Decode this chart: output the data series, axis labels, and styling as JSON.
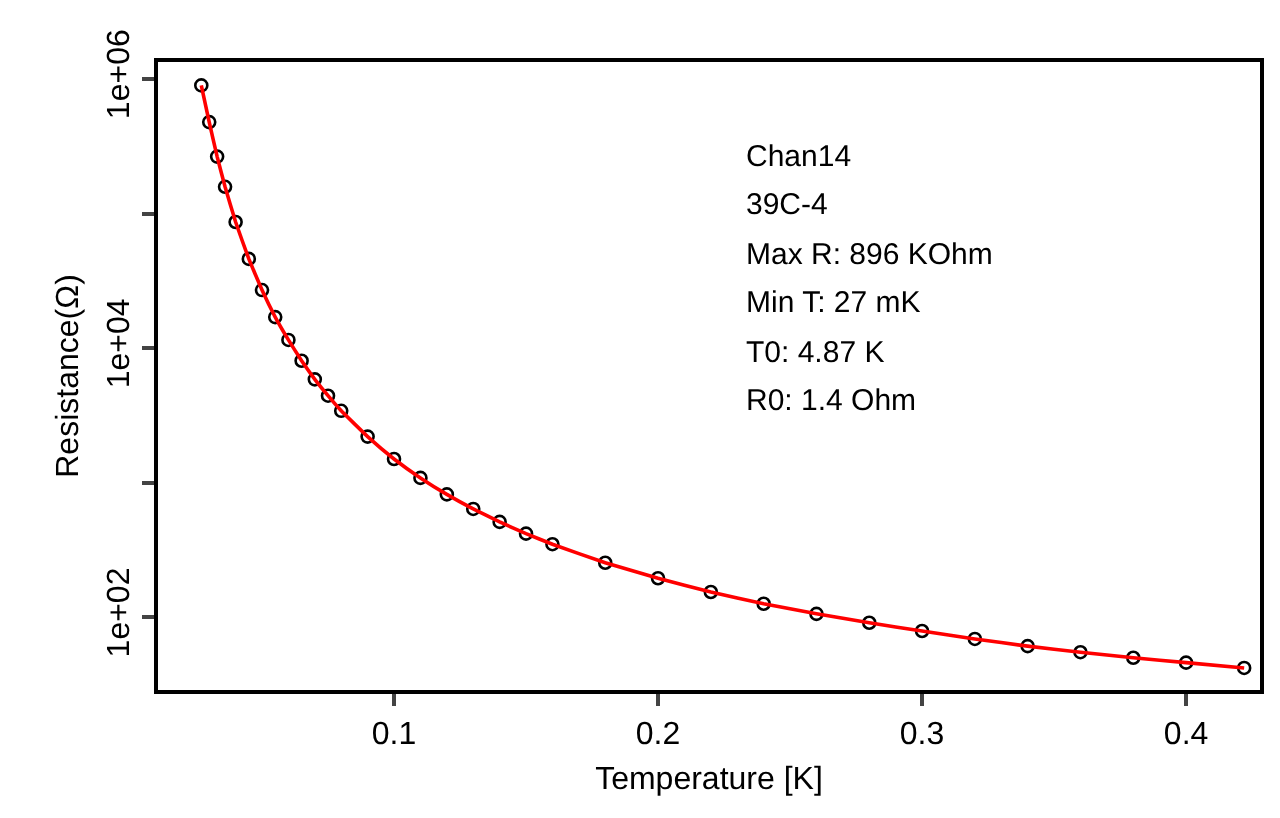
{
  "chart_data": {
    "type": "scatter",
    "xlabel": "Temperature [K]",
    "ylabel": "Resistance(Ω)",
    "annotations": [
      "Chan14",
      "39C-4",
      "Max R: 896 KOhm",
      "Min T: 27 mK",
      "T0: 4.87 K",
      "R0: 1.4 Ohm"
    ],
    "x": [
      0.027,
      0.03,
      0.033,
      0.036,
      0.04,
      0.045,
      0.05,
      0.055,
      0.06,
      0.065,
      0.07,
      0.075,
      0.08,
      0.09,
      0.1,
      0.11,
      0.12,
      0.13,
      0.14,
      0.15,
      0.16,
      0.18,
      0.2,
      0.22,
      0.24,
      0.26,
      0.28,
      0.3,
      0.32,
      0.34,
      0.36,
      0.38,
      0.4,
      0.422
    ],
    "series": [
      {
        "color": "#000000",
        "marker": "circle",
        "values": [
          896000,
          478000,
          265000,
          158000,
          86500,
          46000,
          27000,
          17000,
          11500,
          8050,
          5860,
          4430,
          3420,
          2200,
          1500,
          1085,
          818,
          638,
          511,
          418,
          349,
          254,
          195,
          154,
          126,
          106,
          91,
          79,
          69,
          61,
          55,
          50,
          46,
          42
        ]
      },
      {
        "type": "line",
        "color": "#ff0000",
        "line_style": "solid",
        "values": [
          896000,
          478000,
          265000,
          158000,
          86500,
          46000,
          27000,
          17000,
          11500,
          8050,
          5860,
          4430,
          3420,
          2200,
          1500,
          1085,
          818,
          638,
          511,
          418,
          349,
          254,
          195,
          154,
          126,
          106,
          91,
          79,
          69,
          61,
          55,
          50,
          46,
          42
        ]
      }
    ],
    "log": "y",
    "xlim": [
      0.0106,
      0.428
    ],
    "ylim": [
      28.8,
      1337000
    ],
    "xticks": [
      0.1,
      0.2,
      0.3,
      0.4
    ],
    "yticks": [
      {
        "value": 100,
        "label": "1e+02"
      },
      {
        "value": 1000,
        "label": null
      },
      {
        "value": 10000,
        "label": "1e+04"
      },
      {
        "value": 100000,
        "label": null
      },
      {
        "value": 1000000,
        "label": "1e+06"
      }
    ],
    "tick_labels": "xy"
  }
}
